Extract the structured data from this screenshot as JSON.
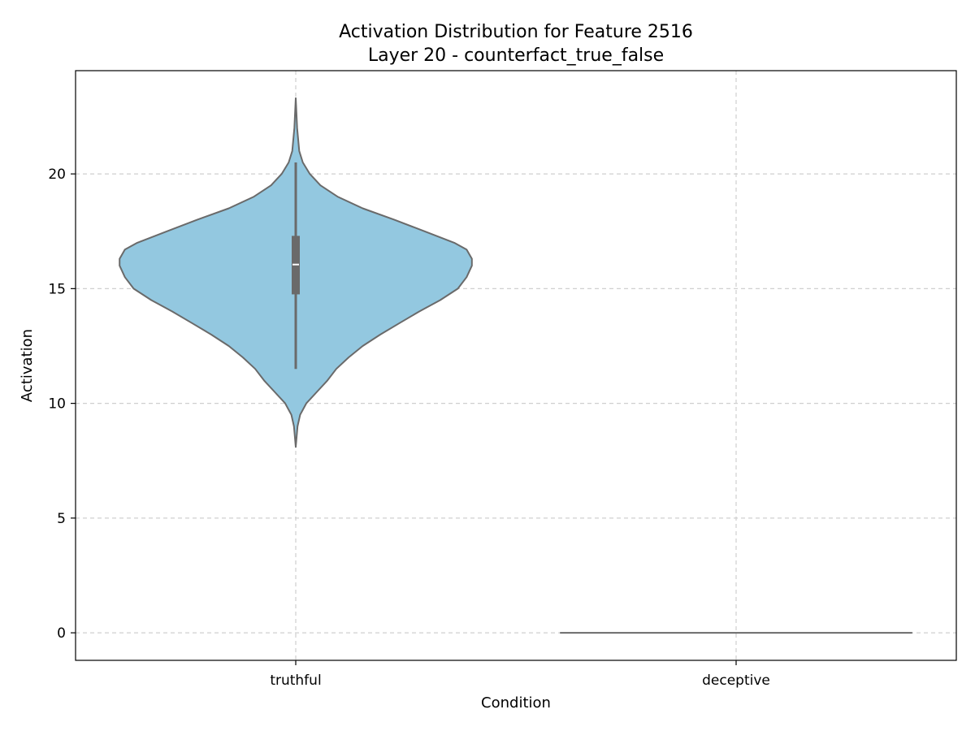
{
  "chart_data": {
    "type": "violin",
    "title": "Activation Distribution for Feature 2516",
    "subtitle": "Layer 20 - counterfact_true_false",
    "xlabel": "Condition",
    "ylabel": "Activation",
    "ylim": [
      -1.2,
      24.5
    ],
    "yticks": [
      0,
      5,
      10,
      15,
      20
    ],
    "grid": true,
    "fill_color": "#93c8e0",
    "line_color": "#6a6a6a",
    "categories": [
      "truthful",
      "deceptive"
    ],
    "violins": [
      {
        "category": "truthful",
        "min": 8.1,
        "max": 23.3,
        "q1": 14.75,
        "median": 16.05,
        "q3": 17.3,
        "whisker_low": 11.5,
        "whisker_high": 20.5,
        "density": [
          [
            8.1,
            0.0
          ],
          [
            9.0,
            0.01
          ],
          [
            9.5,
            0.025
          ],
          [
            10.0,
            0.06
          ],
          [
            10.5,
            0.12
          ],
          [
            11.0,
            0.18
          ],
          [
            11.5,
            0.23
          ],
          [
            12.0,
            0.3
          ],
          [
            12.5,
            0.38
          ],
          [
            13.0,
            0.48
          ],
          [
            13.5,
            0.59
          ],
          [
            14.0,
            0.7
          ],
          [
            14.5,
            0.82
          ],
          [
            15.0,
            0.92
          ],
          [
            15.5,
            0.97
          ],
          [
            16.0,
            1.0
          ],
          [
            16.3,
            1.0
          ],
          [
            16.7,
            0.97
          ],
          [
            17.0,
            0.9
          ],
          [
            17.5,
            0.73
          ],
          [
            18.0,
            0.56
          ],
          [
            18.5,
            0.38
          ],
          [
            19.0,
            0.24
          ],
          [
            19.5,
            0.14
          ],
          [
            20.0,
            0.08
          ],
          [
            20.5,
            0.04
          ],
          [
            21.0,
            0.02
          ],
          [
            22.0,
            0.008
          ],
          [
            23.3,
            0.0
          ]
        ]
      },
      {
        "category": "deceptive",
        "min": 0,
        "max": 0,
        "degenerate_value": 0
      }
    ]
  }
}
